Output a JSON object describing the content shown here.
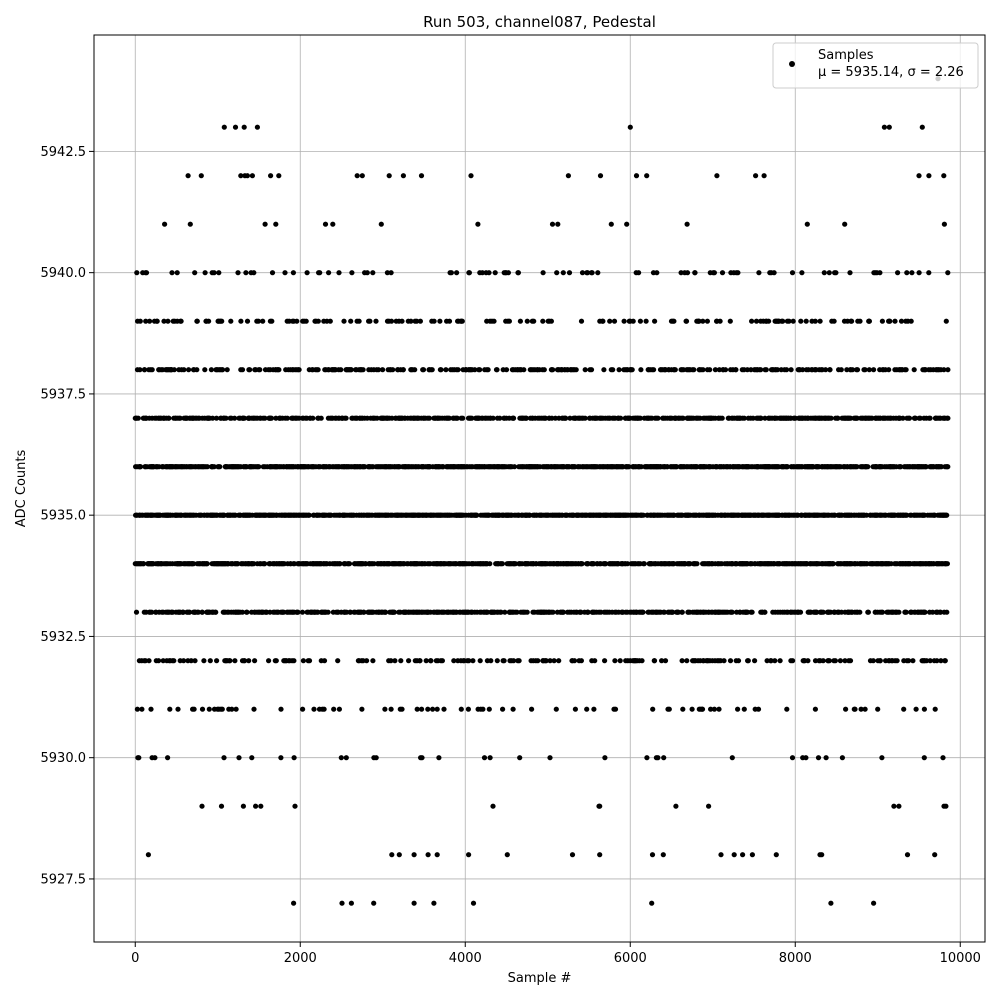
{
  "chart_data": {
    "type": "scatter",
    "title": "Run 503, channel087, Pedestal",
    "xlabel": "Sample #",
    "ylabel": "ADC Counts",
    "xlim": [
      -500,
      10300
    ],
    "ylim": [
      5926.2,
      5944.9
    ],
    "x_ticks": [
      0,
      2000,
      4000,
      6000,
      8000,
      10000
    ],
    "x_tick_labels": [
      "0",
      "2000",
      "4000",
      "6000",
      "8000",
      "10000"
    ],
    "y_ticks": [
      5927.5,
      5930.0,
      5932.5,
      5935.0,
      5937.5,
      5940.0,
      5942.5
    ],
    "y_tick_labels": [
      "5927.5",
      "5930.0",
      "5932.5",
      "5935.0",
      "5937.5",
      "5940.0",
      "5942.5"
    ],
    "grid": true,
    "legend": {
      "position": "top-right",
      "series_label": "Samples",
      "stats_label": "μ = 5935.14, σ = 2.26"
    },
    "marker_color": "#000000",
    "n_samples": 9850,
    "level_density": {
      "5927": 0.0015,
      "5928": 0.004,
      "5929": 0.008,
      "5930": 0.03,
      "5931": 0.06,
      "5932": 0.15,
      "5933": 0.35,
      "5934": 0.55,
      "5935": 0.6,
      "5936": 0.55,
      "5937": 0.35,
      "5938": 0.25,
      "5939": 0.12,
      "5940": 0.06,
      "5941": 0.012,
      "5942": 0.004,
      "5943": 0.0015
    },
    "sparse_points": [
      {
        "x": 1080,
        "y": 5943
      },
      {
        "x": 1320,
        "y": 5943
      },
      {
        "x": 1480,
        "y": 5943
      },
      {
        "x": 6000,
        "y": 5943
      },
      {
        "x": 9080,
        "y": 5943
      },
      {
        "x": 9140,
        "y": 5943
      },
      {
        "x": 9540,
        "y": 5943
      },
      {
        "x": 9730,
        "y": 5944
      },
      {
        "x": 1920,
        "y": 5927
      },
      {
        "x": 2620,
        "y": 5927
      },
      {
        "x": 3380,
        "y": 5927
      },
      {
        "x": 3620,
        "y": 5927
      },
      {
        "x": 4100,
        "y": 5927
      },
      {
        "x": 6260,
        "y": 5927
      },
      {
        "x": 8950,
        "y": 5927
      },
      {
        "x": 640,
        "y": 5942
      },
      {
        "x": 800,
        "y": 5942
      },
      {
        "x": 1280,
        "y": 5942
      },
      {
        "x": 1360,
        "y": 5942
      },
      {
        "x": 1420,
        "y": 5942
      },
      {
        "x": 1640,
        "y": 5942
      },
      {
        "x": 1740,
        "y": 5942
      },
      {
        "x": 2690,
        "y": 5942
      },
      {
        "x": 3250,
        "y": 5942
      },
      {
        "x": 3470,
        "y": 5942
      },
      {
        "x": 4070,
        "y": 5942
      },
      {
        "x": 5250,
        "y": 5942
      },
      {
        "x": 5640,
        "y": 5942
      },
      {
        "x": 7050,
        "y": 5942
      },
      {
        "x": 7520,
        "y": 5942
      },
      {
        "x": 9500,
        "y": 5942
      },
      {
        "x": 9620,
        "y": 5942
      },
      {
        "x": 9800,
        "y": 5942
      },
      {
        "x": 160,
        "y": 5928
      },
      {
        "x": 3110,
        "y": 5928
      },
      {
        "x": 3200,
        "y": 5928
      },
      {
        "x": 3380,
        "y": 5928
      },
      {
        "x": 3550,
        "y": 5928
      },
      {
        "x": 3660,
        "y": 5928
      },
      {
        "x": 4040,
        "y": 5928
      },
      {
        "x": 4510,
        "y": 5928
      },
      {
        "x": 5300,
        "y": 5928
      },
      {
        "x": 5630,
        "y": 5928
      },
      {
        "x": 6270,
        "y": 5928
      },
      {
        "x": 6400,
        "y": 5928
      },
      {
        "x": 7100,
        "y": 5928
      },
      {
        "x": 7260,
        "y": 5928
      },
      {
        "x": 7480,
        "y": 5928
      },
      {
        "x": 7770,
        "y": 5928
      },
      {
        "x": 8300,
        "y": 5928
      },
      {
        "x": 9690,
        "y": 5928
      }
    ]
  }
}
